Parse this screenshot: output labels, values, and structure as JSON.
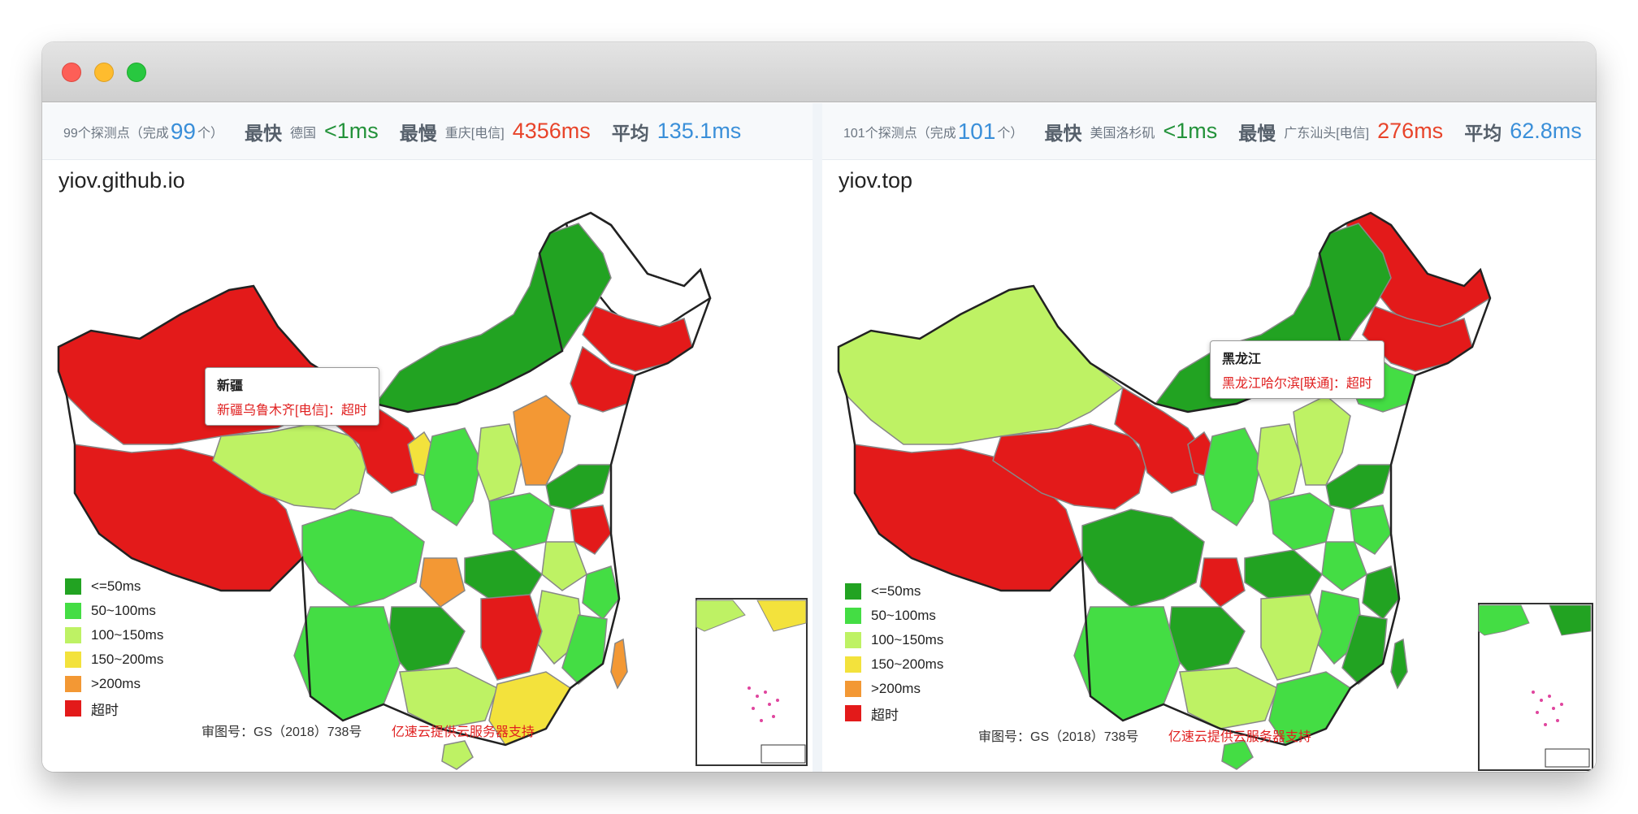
{
  "panels": [
    {
      "stats": {
        "probe_prefix": "99个探测点（完成",
        "completed": "99",
        "probe_suffix": "个）",
        "fastest_label": "最快",
        "fastest_place": "德国",
        "fastest_value": "<1ms",
        "slowest_label": "最慢",
        "slowest_place": "重庆[电信]",
        "slowest_value": "4356ms",
        "avg_label": "平均",
        "avg_value": "135.1ms"
      },
      "site": "yiov.github.io",
      "tooltip": {
        "title": "新疆",
        "text": "新疆乌鲁木齐[电信]：超时"
      }
    },
    {
      "stats": {
        "probe_prefix": "101个探测点（完成",
        "completed": "101",
        "probe_suffix": "个）",
        "fastest_label": "最快",
        "fastest_place": "美国洛杉矶",
        "fastest_value": "<1ms",
        "slowest_label": "最慢",
        "slowest_place": "广东汕头[电信]",
        "slowest_value": "276ms",
        "avg_label": "平均",
        "avg_value": "62.8ms"
      },
      "site": "yiov.top",
      "tooltip": {
        "title": "黑龙江",
        "text": "黑龙江哈尔滨[联通]：超时"
      }
    }
  ],
  "legend": [
    {
      "label": "<=50ms",
      "color": "#22a322"
    },
    {
      "label": "50~100ms",
      "color": "#44dd44"
    },
    {
      "label": "100~150ms",
      "color": "#bef264"
    },
    {
      "label": "150~200ms",
      "color": "#f3e23c"
    },
    {
      "label": ">200ms",
      "color": "#f39834"
    },
    {
      "label": "超时",
      "color": "#e31a1a"
    }
  ],
  "footer": {
    "approval": "审图号：GS（2018）738号",
    "support": "亿速云提供云服务器支持"
  },
  "colors": {
    "timeout": "#e31a1a",
    "fast": "#22a322",
    "ok": "#44dd44",
    "mid": "#bef264",
    "slow": "#f3e23c",
    "veryslow": "#f39834",
    "accent_blue": "#3a8fd9"
  }
}
